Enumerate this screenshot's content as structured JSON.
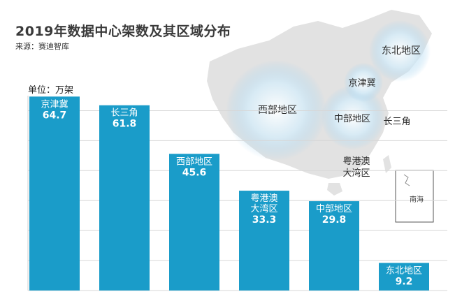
{
  "title": "2019年数据中心架数及其区域分布",
  "source": "来源：赛迪智库",
  "chart_data": {
    "type": "bar",
    "ylabel": "单位：万架",
    "categories": [
      "京津冀",
      "长三角",
      "西部地区",
      "粤港澳大湾区",
      "中部地区",
      "东北地区"
    ],
    "category_lines": [
      [
        "京津冀"
      ],
      [
        "长三角"
      ],
      [
        "西部地区"
      ],
      [
        "粤港澳",
        "大湾区"
      ],
      [
        "中部地区"
      ],
      [
        "东北地区"
      ]
    ],
    "values": [
      64.7,
      61.8,
      45.6,
      33.3,
      29.8,
      9.2
    ],
    "value_labels": [
      "64.7",
      "61.8",
      "45.6",
      "33.3",
      "29.8",
      "9.2"
    ],
    "ylim": [
      0,
      65
    ],
    "grid": true,
    "bar_color": "#1a9cc9",
    "label_color": "#ffffff"
  },
  "map": {
    "labels": [
      {
        "text": "东北地区"
      },
      {
        "text": "京津冀"
      },
      {
        "text": "西部地区"
      },
      {
        "text": "中部地区"
      },
      {
        "text": "长三角"
      },
      {
        "text": "粤港澳"
      },
      {
        "text": "大湾区"
      }
    ],
    "inset_label": "南海",
    "land_color": "#e2e2e2",
    "glow_color": "#9fd0ee"
  }
}
